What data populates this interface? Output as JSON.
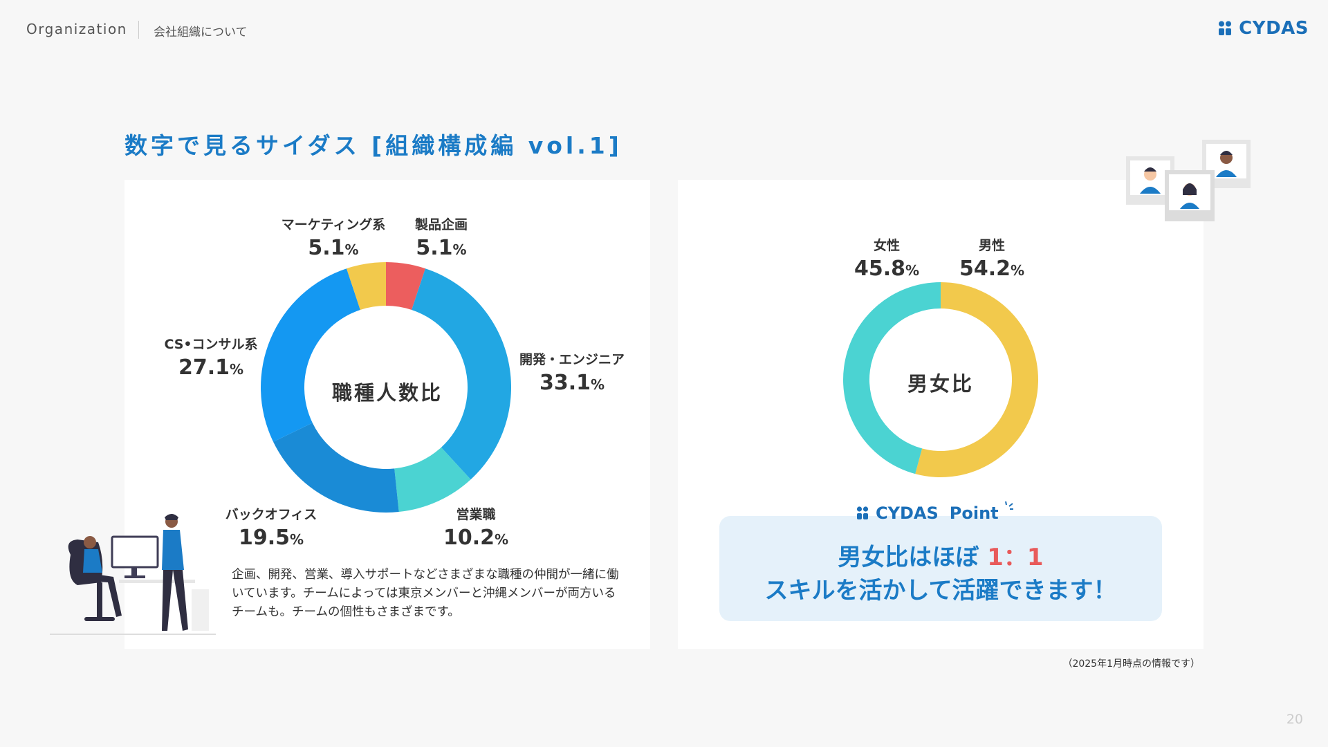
{
  "header": {
    "section": "Organization",
    "subtitle": "会社組織について",
    "logo": "CYDAS"
  },
  "page": {
    "title": "数字で見るサイダス [組織構成編 vol.1]",
    "number": "20",
    "note": "（2025年1月時点の情報です）"
  },
  "colors": {
    "accent": "#1b7bc6",
    "red": "#ec5e5e",
    "yellow": "#f2c94c",
    "teal": "#4bd3d2",
    "blue1": "#22a7e3",
    "blue2": "#1a8bd6",
    "blue3": "#1498f2"
  },
  "chart_data": [
    {
      "type": "pie",
      "center_label": "職種人数比",
      "categories": [
        "製品企画",
        "開発・エンジニア",
        "営業職",
        "バックオフィス",
        "CS•コンサル系",
        "マーケティング系"
      ],
      "values": [
        5.1,
        33.1,
        10.2,
        19.5,
        27.1,
        5.1
      ],
      "colors": [
        "#ec5e5e",
        "#22a7e3",
        "#4bd3d2",
        "#1a8bd6",
        "#1498f2",
        "#f2c94c"
      ],
      "unit": "%"
    },
    {
      "type": "pie",
      "center_label": "男女比",
      "categories": [
        "男性",
        "女性"
      ],
      "values": [
        54.2,
        45.8
      ],
      "colors": [
        "#f2c94c",
        "#4bd3d2"
      ],
      "unit": "%"
    }
  ],
  "description": "企画、開発、営業、導入サポートなどさまざまな職種の仲間が一緒に働いています。チームによっては東京メンバーと沖縄メンバーが両方いるチームも。チームの個性もさまざまです。",
  "point": {
    "label_brand": "CYDAS",
    "label_word": "Point",
    "line1_prefix": "男女比はほぼ ",
    "line1_ratio": "1：1",
    "line2": "スキルを活かして活躍できます！"
  }
}
